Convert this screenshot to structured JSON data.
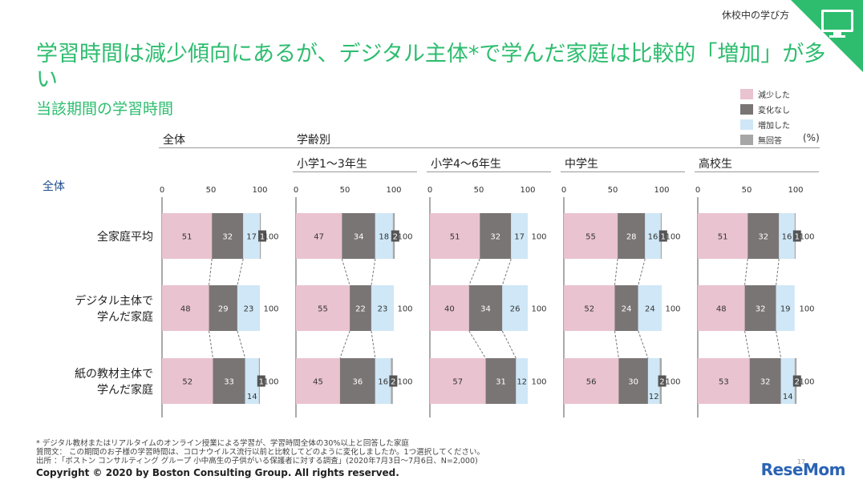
{
  "header": {
    "tag": "休校中の学び方"
  },
  "title": "学習時間は減少傾向にあるが、デジタル主体*で学んだ家庭は比較的「増加」が多い",
  "subtitle": "当該期間の学習時間",
  "unit": "(%)",
  "colors": {
    "accent": "#2ebd6f",
    "decrease": "#e9c3cf",
    "same": "#7a7575",
    "increase": "#cfe7f6",
    "no_answer": "#a6a6a6"
  },
  "sections": {
    "overall": "全体",
    "by_grade": "学齢別"
  },
  "row_head": "全体",
  "rows": [
    "全家庭平均",
    "デジタル主体で\n学んだ家庭",
    "紙の教材主体で\n学んだ家庭"
  ],
  "footnotes": [
    "* デジタル教材またはリアルタイムのオンライン授業による学習が、学習時間全体の30%以上と回答した家庭",
    "質問文： この期間のお子様の学習時間は、コロナウイルス流行以前と比較してどのように変化しましたか。1つ選択してください。",
    "出所 ：「ボストン コンサルティング グループ 小中高生の子供がいる保護者に対する調査」(2020年7月3日～7月6日、N=2,000)"
  ],
  "copyright": "Copyright © 2020 by Boston Consulting Group. All rights reserved.",
  "page_number": "17",
  "logo": "ReseMom",
  "chart_data": {
    "type": "bar",
    "stacked": true,
    "orientation": "horizontal",
    "xlim": [
      0,
      100
    ],
    "xticks": [
      0,
      50,
      100
    ],
    "legend": {
      "placement": "top-right",
      "entries": [
        "減少した",
        "変化なし",
        "増加した",
        "無回答"
      ]
    },
    "series_names": [
      "減少した",
      "変化なし",
      "増加した",
      "無回答"
    ],
    "panels": [
      {
        "name": "全体",
        "rows": [
          {
            "row": "全家庭平均",
            "values": [
              51,
              32,
              17,
              1
            ],
            "total": 100
          },
          {
            "row": "デジタル主体で学んだ家庭",
            "values": [
              48,
              29,
              23,
              0
            ],
            "total": 100
          },
          {
            "row": "紙の教材主体で学んだ家庭",
            "values": [
              52,
              33,
              14,
              1
            ],
            "total": 100
          }
        ]
      },
      {
        "name": "小学1～3年生",
        "rows": [
          {
            "row": "全家庭平均",
            "values": [
              47,
              34,
              18,
              2
            ],
            "total": 100
          },
          {
            "row": "デジタル主体で学んだ家庭",
            "values": [
              55,
              22,
              23,
              0
            ],
            "total": 100
          },
          {
            "row": "紙の教材主体で学んだ家庭",
            "values": [
              45,
              36,
              16,
              2
            ],
            "total": 100
          }
        ]
      },
      {
        "name": "小学4～6年生",
        "rows": [
          {
            "row": "全家庭平均",
            "values": [
              51,
              32,
              17,
              0
            ],
            "total": 100
          },
          {
            "row": "デジタル主体で学んだ家庭",
            "values": [
              40,
              34,
              26,
              0
            ],
            "total": 100
          },
          {
            "row": "紙の教材主体で学んだ家庭",
            "values": [
              57,
              31,
              12,
              0
            ],
            "total": 100
          }
        ]
      },
      {
        "name": "中学生",
        "rows": [
          {
            "row": "全家庭平均",
            "values": [
              55,
              28,
              16,
              1
            ],
            "total": 100
          },
          {
            "row": "デジタル主体で学んだ家庭",
            "values": [
              52,
              24,
              24,
              0
            ],
            "total": 100
          },
          {
            "row": "紙の教材主体で学んだ家庭",
            "values": [
              56,
              30,
              12,
              2
            ],
            "total": 100
          }
        ]
      },
      {
        "name": "高校生",
        "rows": [
          {
            "row": "全家庭平均",
            "values": [
              51,
              32,
              16,
              1
            ],
            "total": 100
          },
          {
            "row": "デジタル主体で学んだ家庭",
            "values": [
              48,
              32,
              19,
              0
            ],
            "total": 100
          },
          {
            "row": "紙の教材主体で学んだ家庭",
            "values": [
              53,
              32,
              14,
              2
            ],
            "total": 100
          }
        ]
      }
    ]
  }
}
